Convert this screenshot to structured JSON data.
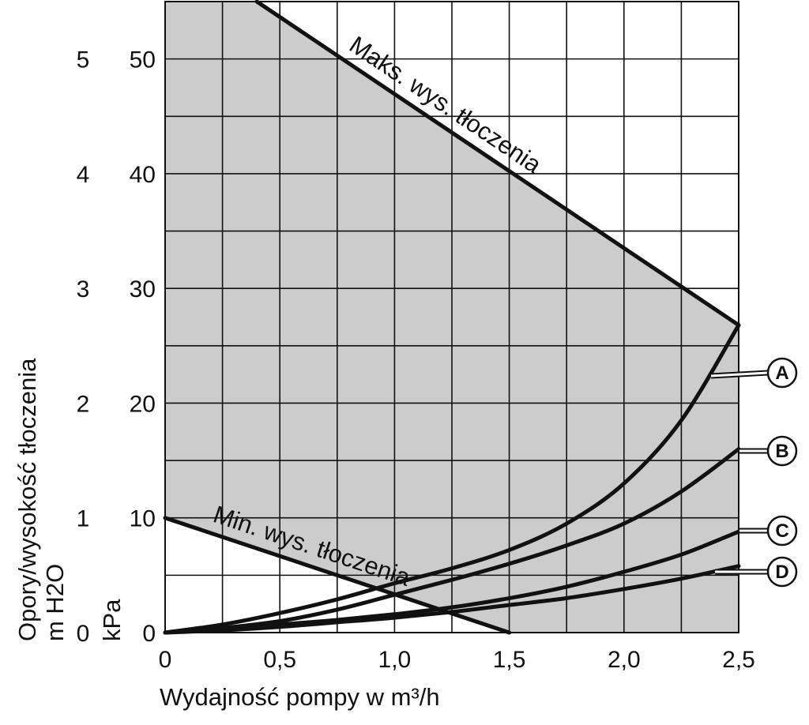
{
  "chart_data": {
    "type": "line",
    "xlabel": "Wydajność pompy w m³/h",
    "ylabel_primary": "Opory/wysokość tłoczenia",
    "ylabel_secondary": "m H2O",
    "ylabel_kpa": "kPa",
    "xlim": [
      0,
      2.5
    ],
    "ylim_kpa": [
      0,
      55
    ],
    "x_ticks": [
      {
        "value": 0,
        "label": "0"
      },
      {
        "value": 0.5,
        "label": "0,5"
      },
      {
        "value": 1.0,
        "label": "1,0"
      },
      {
        "value": 1.5,
        "label": "1,5"
      },
      {
        "value": 2.0,
        "label": "2,0"
      },
      {
        "value": 2.5,
        "label": "2,5"
      }
    ],
    "y_ticks_kpa": [
      {
        "value": 0,
        "label": "0"
      },
      {
        "value": 10,
        "label": "10"
      },
      {
        "value": 20,
        "label": "20"
      },
      {
        "value": 30,
        "label": "30"
      },
      {
        "value": 40,
        "label": "40"
      },
      {
        "value": 50,
        "label": "50"
      }
    ],
    "y_ticks_mh2o": [
      {
        "value": 0,
        "label": "0"
      },
      {
        "value": 1,
        "label": "1"
      },
      {
        "value": 2,
        "label": "2"
      },
      {
        "value": 3,
        "label": "3"
      },
      {
        "value": 4,
        "label": "4"
      },
      {
        "value": 5,
        "label": "5"
      }
    ],
    "grid": true,
    "limits": [
      {
        "name": "Maks. wys. tłoczenia",
        "points": [
          [
            0.4,
            55
          ],
          [
            2.5,
            26.8
          ]
        ]
      },
      {
        "name": "Min. wys. tłoczenia",
        "points": [
          [
            0,
            10
          ],
          [
            1.5,
            0
          ]
        ]
      }
    ],
    "series": [
      {
        "name": "A",
        "x": [
          0,
          0.25,
          0.5,
          0.75,
          1.0,
          1.25,
          1.5,
          1.75,
          2.0,
          2.25,
          2.5
        ],
        "values": [
          0,
          0.7,
          1.7,
          2.9,
          4.3,
          5.6,
          7.2,
          9.5,
          13.0,
          18.5,
          26.8
        ]
      },
      {
        "name": "B",
        "x": [
          0,
          0.25,
          0.5,
          0.75,
          1.0,
          1.25,
          1.5,
          1.75,
          2.0,
          2.25,
          2.5
        ],
        "values": [
          0,
          0.4,
          1.0,
          2.0,
          3.3,
          4.6,
          6.0,
          7.6,
          9.5,
          12.3,
          16.0
        ]
      },
      {
        "name": "C",
        "x": [
          0,
          0.25,
          0.5,
          0.75,
          1.0,
          1.25,
          1.5,
          1.75,
          2.0,
          2.25,
          2.5
        ],
        "values": [
          0,
          0.3,
          0.7,
          1.1,
          1.6,
          2.2,
          3.0,
          4.0,
          5.3,
          6.8,
          8.8
        ]
      },
      {
        "name": "D",
        "x": [
          0,
          0.25,
          0.5,
          0.75,
          1.0,
          1.25,
          1.5,
          1.75,
          2.0,
          2.25,
          2.5
        ],
        "values": [
          0,
          0.2,
          0.5,
          0.9,
          1.3,
          1.8,
          2.4,
          3.0,
          3.8,
          4.7,
          5.8
        ]
      }
    ]
  }
}
